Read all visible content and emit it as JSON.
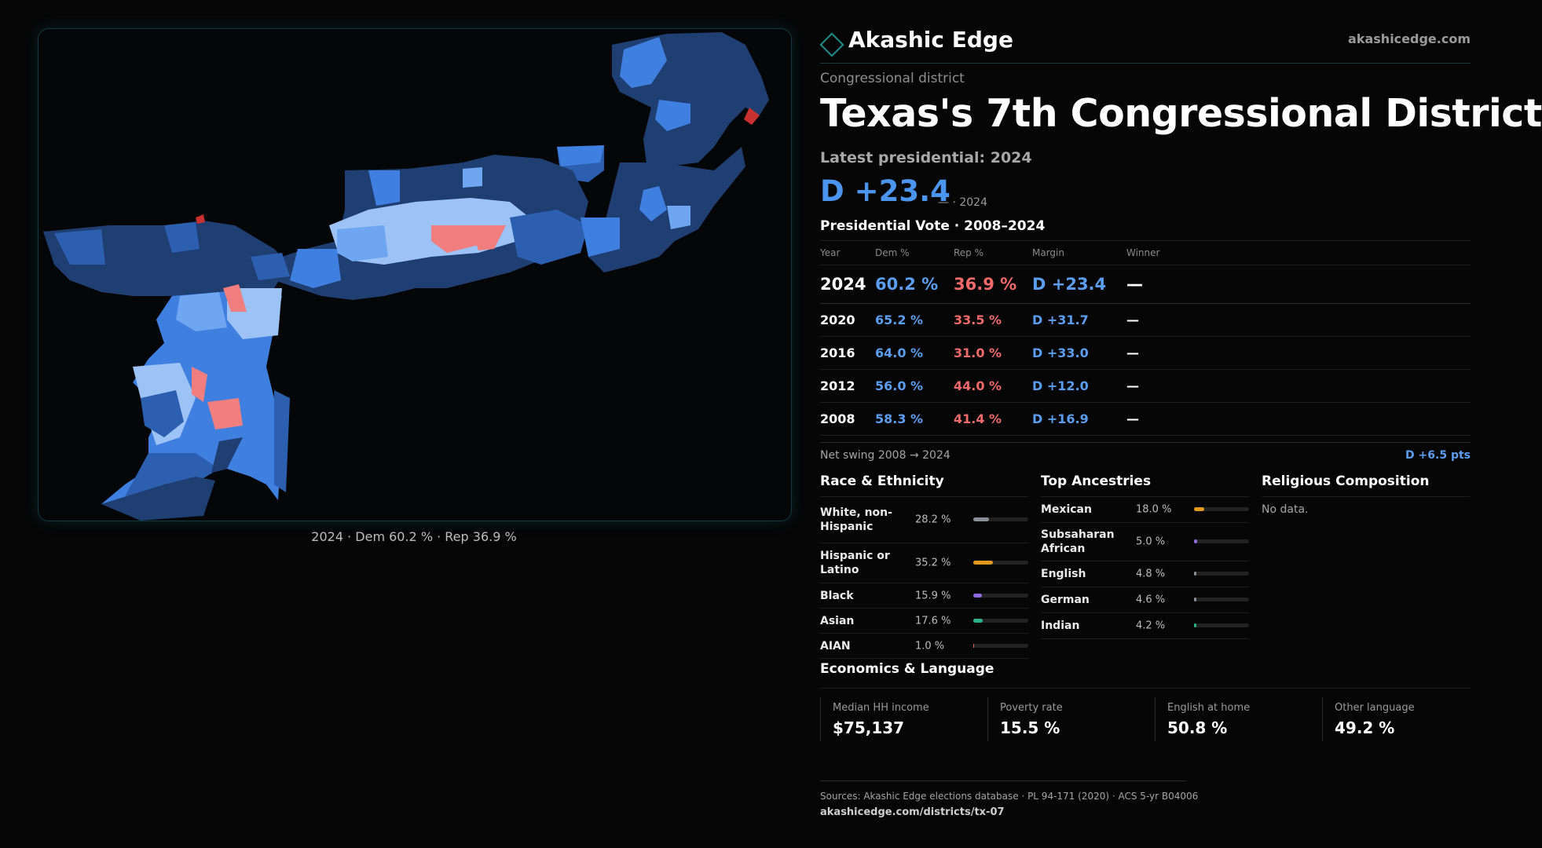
{
  "map": {
    "caption": "2024 · Dem 60.2 % · Rep 36.9 %",
    "colors": {
      "deep_dem": "#1f3f73",
      "mid_dem": "#2c5fb0",
      "dem": "#3f7fe0",
      "light_dem": "#6ea6f2",
      "lean_dem": "#9cc2f6",
      "lean_rep": "#f07e7e",
      "rep": "#c93030"
    }
  },
  "brand": {
    "name": "Akashic Edge",
    "url": "akashicedge.com",
    "accent": "#1d8e8a"
  },
  "header": {
    "kicker": "Congressional district",
    "title": "Texas's  7th Congressional District",
    "latest_label": "Latest presidential: 2024",
    "margin": "D +23.4",
    "margin_note": "— · 2024"
  },
  "vote_table": {
    "title": "Presidential Vote · 2008–2024",
    "columns": [
      "Year",
      "Dem %",
      "Rep %",
      "Margin",
      "Winner"
    ],
    "rows": [
      {
        "year": "2024",
        "dem": "60.2 %",
        "rep": "36.9 %",
        "margin": "D +23.4",
        "winner": "—"
      },
      {
        "year": "2020",
        "dem": "65.2 %",
        "rep": "33.5 %",
        "margin": "D +31.7",
        "winner": "—"
      },
      {
        "year": "2016",
        "dem": "64.0 %",
        "rep": "31.0 %",
        "margin": "D +33.0",
        "winner": "—"
      },
      {
        "year": "2012",
        "dem": "56.0 %",
        "rep": "44.0 %",
        "margin": "D +12.0",
        "winner": "—"
      },
      {
        "year": "2008",
        "dem": "58.3 %",
        "rep": "41.4 %",
        "margin": "D +16.9",
        "winner": "—"
      }
    ],
    "swing_label": "Net swing 2008 → 2024",
    "swing_value": "D +6.5 pts"
  },
  "race": {
    "title": "Race & Ethnicity",
    "items": [
      {
        "label": "White, non-Hispanic",
        "pct": "28.2 %",
        "value": 28.2,
        "color": "#8a9098"
      },
      {
        "label": "Hispanic or Latino",
        "pct": "35.2 %",
        "value": 35.2,
        "color": "#e39a1c"
      },
      {
        "label": "Black",
        "pct": "15.9 %",
        "value": 15.9,
        "color": "#8f6ae0"
      },
      {
        "label": "Asian",
        "pct": "17.6 %",
        "value": 17.6,
        "color": "#2ab38a"
      },
      {
        "label": "AIAN",
        "pct": "1.0 %",
        "value": 1.0,
        "color": "#e06a4a"
      }
    ]
  },
  "ancestry": {
    "title": "Top Ancestries",
    "items": [
      {
        "label": "Mexican",
        "pct": "18.0 %",
        "value": 18.0,
        "color": "#e39a1c"
      },
      {
        "label": "Subsaharan African",
        "pct": "5.0 %",
        "value": 5.0,
        "color": "#8f6ae0"
      },
      {
        "label": "English",
        "pct": "4.8 %",
        "value": 4.8,
        "color": "#8a9098"
      },
      {
        "label": "German",
        "pct": "4.6 %",
        "value": 4.6,
        "color": "#8a9098"
      },
      {
        "label": "Indian",
        "pct": "4.2 %",
        "value": 4.2,
        "color": "#2ab38a"
      }
    ]
  },
  "religion": {
    "title": "Religious Composition",
    "no_data": "No data."
  },
  "economics": {
    "title": "Economics & Language",
    "items": [
      {
        "label": "Median HH income",
        "value": "$75,137"
      },
      {
        "label": "Poverty rate",
        "value": "15.5 %"
      },
      {
        "label": "English at home",
        "value": "50.8 %"
      },
      {
        "label": "Other language",
        "value": "49.2 %"
      }
    ]
  },
  "sources": {
    "text": "Sources: Akashic Edge elections database · PL 94-171 (2020) · ACS 5-yr B04006",
    "link": "akashicedge.com/districts/tx-07"
  }
}
